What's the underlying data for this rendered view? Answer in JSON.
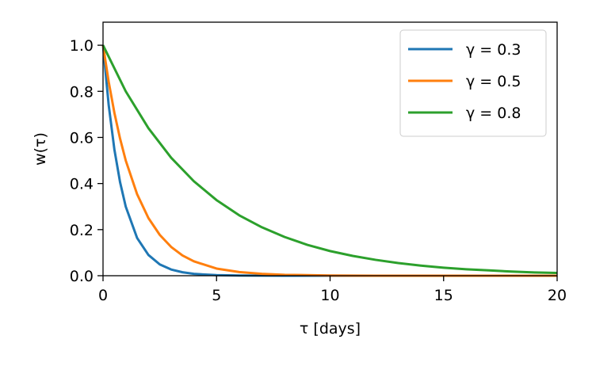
{
  "chart_data": {
    "type": "line",
    "xlabel": "τ [days]",
    "ylabel": "w(τ)",
    "xlim": [
      0,
      20
    ],
    "ylim": [
      0,
      1.1
    ],
    "xticks": [
      0,
      5,
      10,
      15,
      20
    ],
    "xtick_labels": [
      "0",
      "5",
      "10",
      "15",
      "20"
    ],
    "yticks": [
      0,
      0.2,
      0.4,
      0.6,
      0.8,
      1.0
    ],
    "ytick_labels": [
      "0.0",
      "0.2",
      "0.4",
      "0.6",
      "0.8",
      "1.0"
    ],
    "grid": false,
    "legend": "top-right",
    "series": [
      {
        "name": "γ = 0.3",
        "color": "#1f77b4",
        "x": [
          0,
          0.25,
          0.5,
          0.75,
          1,
          1.5,
          2,
          2.5,
          3,
          3.5,
          4,
          5,
          6,
          8,
          10,
          15,
          20
        ],
        "y": [
          1.0,
          0.74,
          0.548,
          0.406,
          0.3,
          0.164,
          0.09,
          0.049,
          0.027,
          0.015,
          0.008,
          0.0024,
          0.0007,
          0.0001,
          0.0,
          0.0,
          0.0
        ]
      },
      {
        "name": "γ = 0.5",
        "color": "#ff7f0e",
        "x": [
          0,
          0.25,
          0.5,
          0.75,
          1,
          1.5,
          2,
          2.5,
          3,
          3.5,
          4,
          5,
          6,
          7,
          8,
          10,
          12,
          15,
          20
        ],
        "y": [
          1.0,
          0.841,
          0.707,
          0.595,
          0.5,
          0.354,
          0.25,
          0.177,
          0.125,
          0.088,
          0.0625,
          0.031,
          0.016,
          0.008,
          0.004,
          0.001,
          0.0002,
          0.0,
          0.0
        ]
      },
      {
        "name": "γ = 0.8",
        "color": "#2ca02c",
        "x": [
          0,
          1,
          2,
          3,
          4,
          5,
          6,
          7,
          8,
          9,
          10,
          11,
          12,
          13,
          14,
          15,
          16,
          17,
          18,
          19,
          20
        ],
        "y": [
          1.0,
          0.8,
          0.64,
          0.512,
          0.41,
          0.328,
          0.262,
          0.21,
          0.168,
          0.134,
          0.107,
          0.086,
          0.069,
          0.055,
          0.044,
          0.035,
          0.028,
          0.023,
          0.018,
          0.014,
          0.012
        ]
      }
    ]
  }
}
